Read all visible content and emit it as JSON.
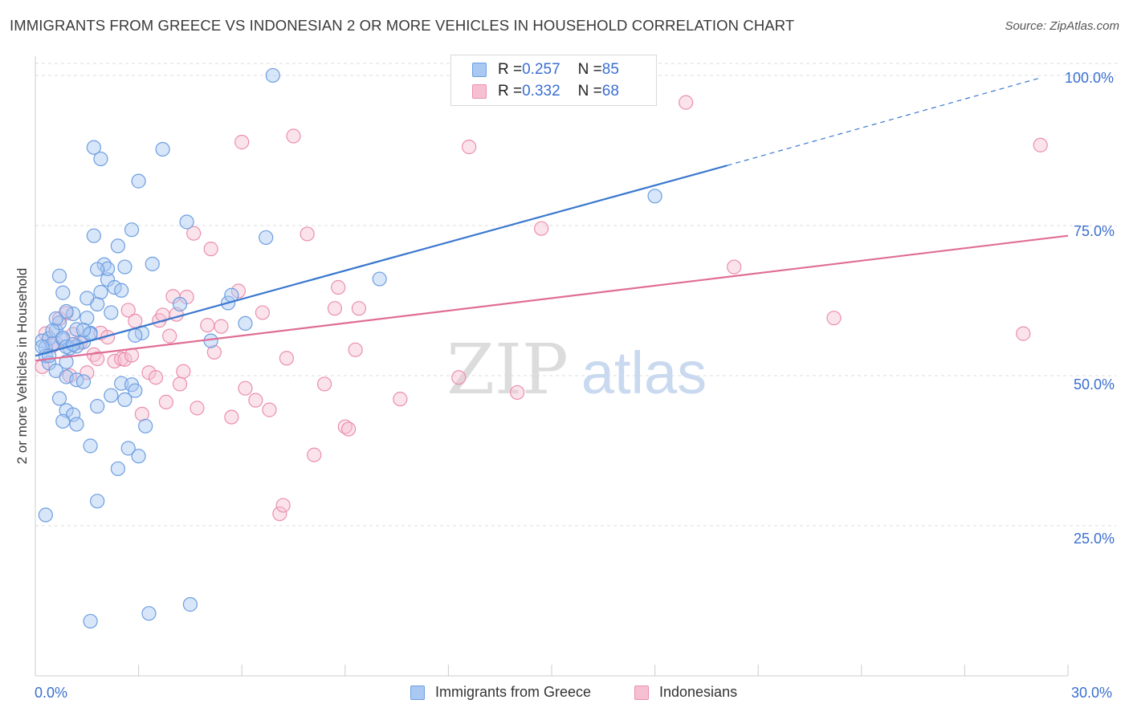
{
  "header": {
    "title": "IMMIGRANTS FROM GREECE VS INDONESIAN 2 OR MORE VEHICLES IN HOUSEHOLD CORRELATION CHART",
    "source": "Source: ZipAtlas.com"
  },
  "legend_top": {
    "rows": [
      {
        "r_label": "R = ",
        "r_value": "0.257",
        "n_label": "N = ",
        "n_value": "85"
      },
      {
        "r_label": "R = ",
        "r_value": "0.332",
        "n_label": "N = ",
        "n_value": "68"
      }
    ]
  },
  "legend_bottom": {
    "items": [
      {
        "label": "Immigrants from Greece"
      },
      {
        "label": "Indonesians"
      }
    ]
  },
  "watermark": {
    "zip": "ZIP",
    "atlas": "atlas"
  },
  "colors": {
    "blue_fill": "#a9c8f2",
    "blue_stroke": "#6d9ee0",
    "blue_line": "#3a78cf",
    "pink_fill": "#f7c0d2",
    "pink_stroke": "#ea8fae",
    "pink_line": "#e06d95",
    "tick_label": "#3a6fd0",
    "grid": "#dddddd"
  },
  "chart_data": {
    "type": "scatter",
    "title": "IMMIGRANTS FROM GREECE VS INDONESIAN 2 OR MORE VEHICLES IN HOUSEHOLD CORRELATION CHART",
    "xlabel": "",
    "ylabel": "2 or more Vehicles in Household",
    "xlim": [
      0,
      30
    ],
    "ylim": [
      0,
      102
    ],
    "x_tick_labels": [
      "0.0%",
      "30.0%"
    ],
    "y_ticks": [
      25,
      50,
      75,
      100
    ],
    "y_tick_labels": [
      "25.0%",
      "50.0%",
      "75.0%",
      "100.0%"
    ],
    "legend_position": "top-center",
    "series": [
      {
        "name": "Immigrants from Greece",
        "r": 0.257,
        "n": 85,
        "trend": {
          "x0": 0,
          "y0": 53.3,
          "x1": 20.1,
          "y1": 85.0,
          "dash_x1": 29.2,
          "dash_y1": 99.6
        },
        "points": [
          [
            0.2,
            55.8
          ],
          [
            0.3,
            54.7
          ],
          [
            0.4,
            56.2
          ],
          [
            0.5,
            55.3
          ],
          [
            0.6,
            57.5
          ],
          [
            0.7,
            58.8
          ],
          [
            0.8,
            56.0
          ],
          [
            0.9,
            52.3
          ],
          [
            1.0,
            54.6
          ],
          [
            1.1,
            60.3
          ],
          [
            1.2,
            57.7
          ],
          [
            1.4,
            55.6
          ],
          [
            1.5,
            59.6
          ],
          [
            1.6,
            57.1
          ],
          [
            1.8,
            61.9
          ],
          [
            1.9,
            63.9
          ],
          [
            2.0,
            68.5
          ],
          [
            2.1,
            66.0
          ],
          [
            2.3,
            64.7
          ],
          [
            2.4,
            71.6
          ],
          [
            2.6,
            68.1
          ],
          [
            0.7,
            66.6
          ],
          [
            0.8,
            63.8
          ],
          [
            0.9,
            60.7
          ],
          [
            0.6,
            59.5
          ],
          [
            0.5,
            57.5
          ],
          [
            0.8,
            56.3
          ],
          [
            1.2,
            54.9
          ],
          [
            1.6,
            56.9
          ],
          [
            0.9,
            54.8
          ],
          [
            0.3,
            53.3
          ],
          [
            0.4,
            52.1
          ],
          [
            0.6,
            50.8
          ],
          [
            0.9,
            49.8
          ],
          [
            1.2,
            49.3
          ],
          [
            1.4,
            49.0
          ],
          [
            0.7,
            46.2
          ],
          [
            0.9,
            44.2
          ],
          [
            1.1,
            43.5
          ],
          [
            0.8,
            42.4
          ],
          [
            1.2,
            41.9
          ],
          [
            1.6,
            38.3
          ],
          [
            1.8,
            44.9
          ],
          [
            2.2,
            46.7
          ],
          [
            2.5,
            48.7
          ],
          [
            2.6,
            46.0
          ],
          [
            2.8,
            48.5
          ],
          [
            2.9,
            47.5
          ],
          [
            3.1,
            57.1
          ],
          [
            3.2,
            41.6
          ],
          [
            2.7,
            37.9
          ],
          [
            3.0,
            36.6
          ],
          [
            2.4,
            34.5
          ],
          [
            1.8,
            29.1
          ],
          [
            0.3,
            26.8
          ],
          [
            1.6,
            9.1
          ],
          [
            3.3,
            10.4
          ],
          [
            4.5,
            11.9
          ],
          [
            1.7,
            88.0
          ],
          [
            1.9,
            86.1
          ],
          [
            3.7,
            87.7
          ],
          [
            3.0,
            82.4
          ],
          [
            2.8,
            74.3
          ],
          [
            4.4,
            75.6
          ],
          [
            1.7,
            73.3
          ],
          [
            3.4,
            68.6
          ],
          [
            2.1,
            67.8
          ],
          [
            1.8,
            67.7
          ],
          [
            2.5,
            64.2
          ],
          [
            4.2,
            61.9
          ],
          [
            5.6,
            62.1
          ],
          [
            5.7,
            63.4
          ],
          [
            6.1,
            58.7
          ],
          [
            5.1,
            55.8
          ],
          [
            6.7,
            73.0
          ],
          [
            6.9,
            100.0
          ],
          [
            10.0,
            66.1
          ],
          [
            18.0,
            79.9
          ],
          [
            2.2,
            60.5
          ],
          [
            1.5,
            62.9
          ],
          [
            1.1,
            55.2
          ],
          [
            2.9,
            56.7
          ],
          [
            1.4,
            57.6
          ],
          [
            0.2,
            54.8
          ],
          [
            0.4,
            53.3
          ]
        ]
      },
      {
        "name": "Indonesians",
        "r": 0.332,
        "n": 68,
        "trend": {
          "x0": 0,
          "y0": 52.5,
          "x1": 30,
          "y1": 73.3
        },
        "points": [
          [
            0.2,
            51.5
          ],
          [
            0.6,
            55.4
          ],
          [
            0.7,
            59.5
          ],
          [
            0.9,
            60.4
          ],
          [
            1.1,
            56.9
          ],
          [
            1.3,
            55.5
          ],
          [
            1.5,
            50.5
          ],
          [
            1.7,
            53.5
          ],
          [
            1.8,
            52.8
          ],
          [
            1.9,
            57.1
          ],
          [
            2.1,
            56.4
          ],
          [
            2.3,
            52.4
          ],
          [
            2.5,
            52.8
          ],
          [
            2.6,
            52.7
          ],
          [
            2.7,
            60.9
          ],
          [
            2.8,
            53.4
          ],
          [
            2.9,
            59.1
          ],
          [
            3.1,
            43.6
          ],
          [
            3.3,
            50.5
          ],
          [
            3.5,
            49.7
          ],
          [
            3.6,
            59.2
          ],
          [
            3.7,
            60.1
          ],
          [
            3.8,
            45.6
          ],
          [
            3.9,
            56.6
          ],
          [
            4.0,
            63.2
          ],
          [
            4.1,
            60.2
          ],
          [
            4.2,
            48.6
          ],
          [
            4.3,
            50.7
          ],
          [
            4.4,
            63.1
          ],
          [
            4.6,
            73.7
          ],
          [
            4.7,
            44.6
          ],
          [
            5.0,
            58.4
          ],
          [
            5.1,
            71.1
          ],
          [
            5.2,
            53.9
          ],
          [
            5.4,
            58.2
          ],
          [
            5.7,
            43.1
          ],
          [
            5.9,
            64.1
          ],
          [
            6.0,
            88.9
          ],
          [
            6.1,
            47.9
          ],
          [
            6.4,
            45.9
          ],
          [
            6.6,
            60.5
          ],
          [
            6.8,
            44.3
          ],
          [
            7.1,
            27.0
          ],
          [
            7.2,
            28.4
          ],
          [
            7.3,
            52.9
          ],
          [
            7.5,
            89.9
          ],
          [
            7.9,
            73.6
          ],
          [
            8.1,
            36.8
          ],
          [
            8.4,
            48.6
          ],
          [
            8.7,
            61.2
          ],
          [
            8.8,
            64.7
          ],
          [
            9.0,
            41.5
          ],
          [
            9.1,
            41.1
          ],
          [
            9.3,
            54.3
          ],
          [
            9.4,
            61.2
          ],
          [
            10.6,
            46.1
          ],
          [
            12.3,
            49.7
          ],
          [
            12.6,
            88.1
          ],
          [
            14.0,
            47.2
          ],
          [
            14.7,
            74.5
          ],
          [
            18.9,
            95.5
          ],
          [
            20.3,
            68.1
          ],
          [
            23.2,
            59.6
          ],
          [
            28.7,
            57.0
          ],
          [
            29.2,
            88.4
          ],
          [
            0.5,
            55.0
          ],
          [
            1.0,
            50.0
          ],
          [
            0.3,
            57.0
          ]
        ]
      }
    ]
  }
}
